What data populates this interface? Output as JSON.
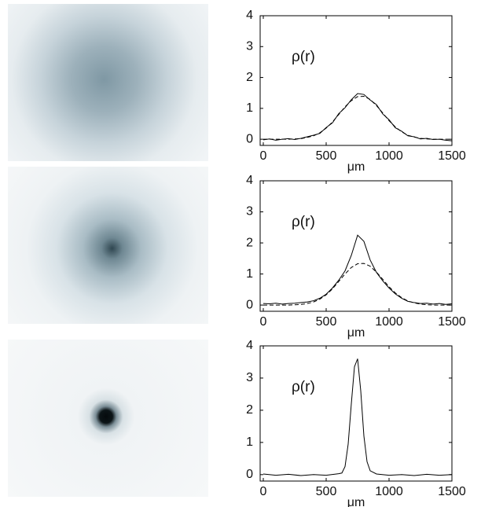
{
  "chart_data": [
    {
      "type": "line",
      "annotation": "ρ(r)",
      "xlabel": "μm",
      "xlim": [
        -25,
        1500
      ],
      "ylim": [
        -0.2,
        4
      ],
      "xticks": [
        0,
        500,
        1000,
        1500
      ],
      "yticks": [
        0,
        1,
        2,
        3,
        4
      ],
      "x": [
        0,
        50,
        100,
        150,
        200,
        250,
        300,
        350,
        400,
        450,
        500,
        550,
        600,
        650,
        700,
        750,
        800,
        850,
        900,
        950,
        1000,
        1050,
        1100,
        1150,
        1200,
        1250,
        1300,
        1350,
        1400,
        1450,
        1500
      ],
      "series": [
        {
          "color": "#000000",
          "style": "solid",
          "values": [
            -0.02,
            0.01,
            -0.03,
            0.0,
            0.02,
            -0.01,
            0.03,
            0.08,
            0.13,
            0.19,
            0.38,
            0.53,
            0.83,
            1.02,
            1.28,
            1.48,
            1.45,
            1.27,
            1.12,
            0.82,
            0.63,
            0.37,
            0.26,
            0.11,
            0.08,
            0.01,
            0.03,
            -0.01,
            0.0,
            -0.03,
            -0.05
          ]
        },
        {
          "color": "#000000",
          "style": "dashed",
          "values": [
            0,
            0,
            0,
            0,
            0,
            0.01,
            0.02,
            0.06,
            0.11,
            0.21,
            0.36,
            0.56,
            0.8,
            1.05,
            1.25,
            1.38,
            1.39,
            1.29,
            1.09,
            0.85,
            0.6,
            0.4,
            0.24,
            0.13,
            0.07,
            0.03,
            0.01,
            0,
            0,
            0,
            0
          ]
        }
      ]
    },
    {
      "type": "line",
      "annotation": "ρ(r)",
      "xlabel": "μm",
      "xlim": [
        -25,
        1500
      ],
      "ylim": [
        -0.2,
        4
      ],
      "xticks": [
        0,
        500,
        1000,
        1500
      ],
      "yticks": [
        0,
        1,
        2,
        3,
        4
      ],
      "x": [
        0,
        50,
        100,
        150,
        200,
        250,
        300,
        350,
        400,
        450,
        500,
        550,
        600,
        650,
        700,
        750,
        800,
        850,
        900,
        950,
        1000,
        1050,
        1100,
        1150,
        1200,
        1250,
        1300,
        1350,
        1400,
        1450,
        1500
      ],
      "series": [
        {
          "color": "#000000",
          "style": "solid",
          "values": [
            0.05,
            0.04,
            0.06,
            0.03,
            0.05,
            0.06,
            0.08,
            0.1,
            0.14,
            0.22,
            0.35,
            0.55,
            0.8,
            1.1,
            1.6,
            2.25,
            2.05,
            1.45,
            1.05,
            0.78,
            0.55,
            0.36,
            0.22,
            0.12,
            0.08,
            0.05,
            0.06,
            0.03,
            0.05,
            0.02,
            0.04
          ]
        },
        {
          "color": "#000000",
          "style": "dashed",
          "values": [
            0,
            0,
            0,
            0,
            0,
            0.01,
            0.02,
            0.05,
            0.1,
            0.19,
            0.33,
            0.52,
            0.76,
            1.0,
            1.21,
            1.33,
            1.34,
            1.25,
            1.06,
            0.83,
            0.59,
            0.39,
            0.24,
            0.13,
            0.07,
            0.03,
            0.01,
            0,
            0,
            0,
            0
          ]
        }
      ]
    },
    {
      "type": "line",
      "annotation": "ρ(r)",
      "xlabel": "μm",
      "xlim": [
        -25,
        1500
      ],
      "ylim": [
        -0.2,
        4
      ],
      "xticks": [
        0,
        500,
        1000,
        1500
      ],
      "yticks": [
        0,
        1,
        2,
        3,
        4
      ],
      "x": [
        0,
        100,
        200,
        300,
        400,
        500,
        600,
        625,
        650,
        675,
        700,
        725,
        750,
        775,
        800,
        825,
        850,
        900,
        1000,
        1100,
        1200,
        1300,
        1400,
        1500
      ],
      "series": [
        {
          "color": "#000000",
          "style": "solid",
          "values": [
            0.02,
            -0.02,
            0.01,
            -0.03,
            0.0,
            -0.02,
            0.03,
            0.05,
            0.25,
            0.95,
            2.2,
            3.35,
            3.6,
            2.6,
            1.2,
            0.4,
            0.12,
            0.02,
            -0.02,
            0.0,
            -0.03,
            0.01,
            -0.02,
            0.0
          ]
        }
      ]
    }
  ]
}
